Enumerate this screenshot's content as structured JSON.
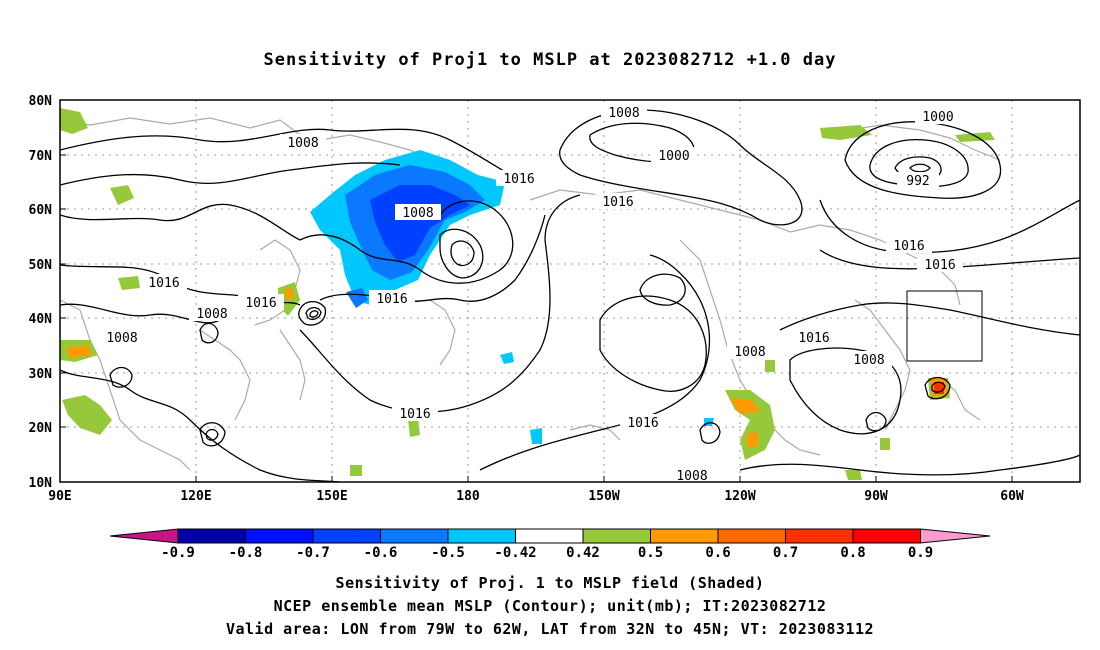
{
  "title": "Sensitivity of Proj1 to MSLP at 2023082712 +1.0 day",
  "map": {
    "lat_labels": [
      "80N",
      "70N",
      "60N",
      "50N",
      "40N",
      "30N",
      "20N",
      "10N"
    ],
    "lon_labels": [
      "90E",
      "120E",
      "150E",
      "180",
      "150W",
      "120W",
      "90W",
      "60W"
    ],
    "contour_labels": [
      "1008",
      "1000",
      "1000",
      "992",
      "1008",
      "1016",
      "1016",
      "1008",
      "1016",
      "1016",
      "1016",
      "1008",
      "1016",
      "1016",
      "1008",
      "1008",
      "1016",
      "1016",
      "1016",
      "1008",
      "1008"
    ],
    "colors": {
      "coast": "#aaaaaa",
      "contour": "#000000",
      "grid": "#999999"
    }
  },
  "colorbar": {
    "labels": [
      "-0.9",
      "-0.8",
      "-0.7",
      "-0.6",
      "-0.5",
      "-0.42",
      "0.42",
      "0.5",
      "0.6",
      "0.7",
      "0.8",
      "0.9"
    ],
    "colors": [
      "#c71585",
      "#0000a8",
      "#0010ff",
      "#0040ff",
      "#0a78ff",
      "#00c8ff",
      "#ffffff",
      "#96c83c",
      "#ff9a00",
      "#ff6a00",
      "#ff3000",
      "#ff0000",
      "#ff9ad0"
    ]
  },
  "captions": [
    "Sensitivity of Proj. 1 to MSLP field (Shaded)",
    "NCEP ensemble mean MSLP (Contour); unit(mb); IT:2023082712",
    "Valid area: LON from 79W to 62W, LAT from 32N to 45N; VT: 2023083112"
  ]
}
